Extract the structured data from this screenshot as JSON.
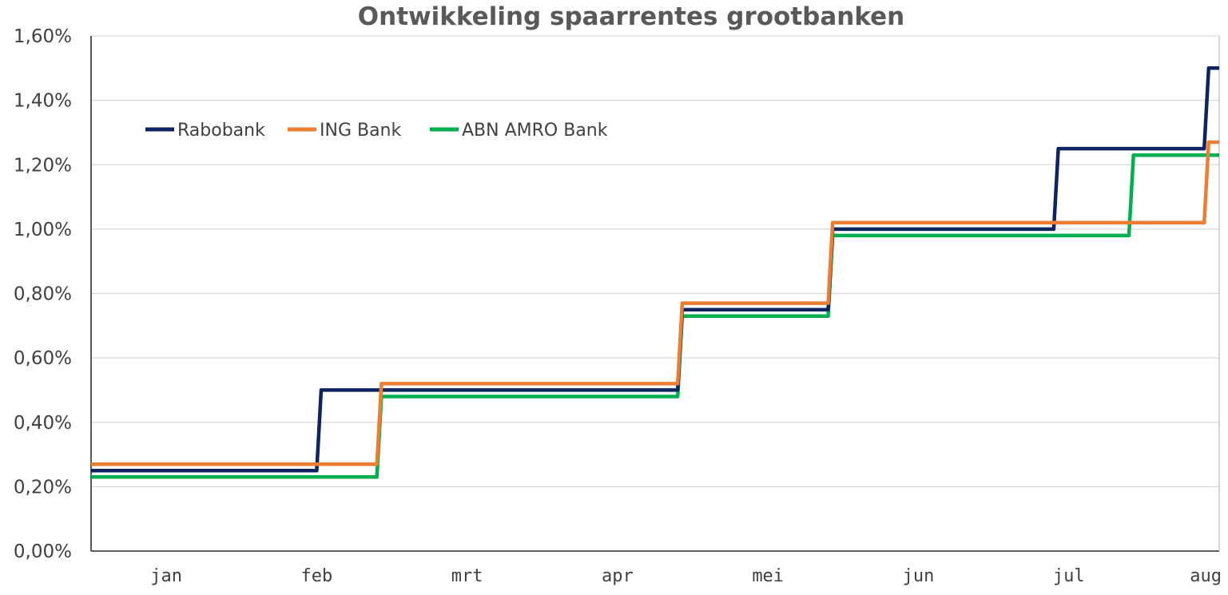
{
  "chart_data": {
    "type": "line",
    "step": true,
    "title": "Ontwikkeling spaarrentes grootbanken",
    "xlabel": "",
    "ylabel": "",
    "ylim": [
      0,
      1.6
    ],
    "yticks": [
      0,
      0.2,
      0.4,
      0.6,
      0.8,
      1.0,
      1.2,
      1.4,
      1.6
    ],
    "ytick_labels": [
      "0,00%",
      "0,20%",
      "0,40%",
      "0,60%",
      "0,80%",
      "1,00%",
      "1,20%",
      "1,40%",
      "1,60%"
    ],
    "xlim": [
      0,
      7.5
    ],
    "categories": [
      "jan",
      "feb",
      "mrt",
      "apr",
      "mei",
      "jun",
      "jul",
      "aug"
    ],
    "grid": true,
    "legend_position": "top-left",
    "series": [
      {
        "name": "Rabobank",
        "color": "#0d2461",
        "points": [
          [
            0,
            0.25
          ],
          [
            1.5,
            0.25
          ],
          [
            1.53,
            0.5
          ],
          [
            3.9,
            0.5
          ],
          [
            3.93,
            0.75
          ],
          [
            4.9,
            0.75
          ],
          [
            4.93,
            1.0
          ],
          [
            6.4,
            1.0
          ],
          [
            6.43,
            1.25
          ],
          [
            7.4,
            1.25
          ],
          [
            7.43,
            1.5
          ],
          [
            7.5,
            1.5
          ]
        ]
      },
      {
        "name": "ING Bank",
        "color": "#ed7d31",
        "points": [
          [
            0,
            0.27
          ],
          [
            1.9,
            0.27
          ],
          [
            1.93,
            0.52
          ],
          [
            3.9,
            0.52
          ],
          [
            3.93,
            0.77
          ],
          [
            4.9,
            0.77
          ],
          [
            4.93,
            1.02
          ],
          [
            7.4,
            1.02
          ],
          [
            7.43,
            1.27
          ],
          [
            7.5,
            1.27
          ]
        ]
      },
      {
        "name": "ABN AMRO Bank",
        "color": "#00b050",
        "points": [
          [
            0,
            0.23
          ],
          [
            1.9,
            0.23
          ],
          [
            1.93,
            0.48
          ],
          [
            3.9,
            0.48
          ],
          [
            3.93,
            0.73
          ],
          [
            4.9,
            0.73
          ],
          [
            4.93,
            0.98
          ],
          [
            6.9,
            0.98
          ],
          [
            6.93,
            1.23
          ],
          [
            7.5,
            1.23
          ]
        ]
      }
    ]
  }
}
